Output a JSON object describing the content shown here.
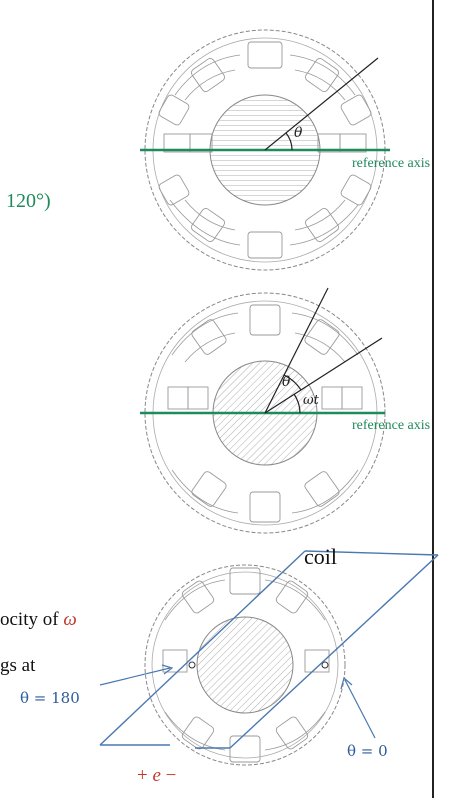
{
  "diagram1": {
    "theta_label": "θ",
    "reference_label": "reference axis"
  },
  "diagram2": {
    "theta_label": "θ",
    "omega_t_label": "ωt",
    "reference_label": "reference axis"
  },
  "diagram3": {
    "coil_label": "coil",
    "theta_180_label": "θ = 180",
    "theta_0_label": "θ = 0",
    "emf_plus": "+",
    "emf_symbol": "e",
    "emf_minus": "−"
  },
  "left_text": {
    "angle_fragment": "120°)",
    "line1_prefix": "ocity of ",
    "line1_symbol": "ω",
    "line2": "gs at"
  },
  "colors": {
    "reference_line": "#1f8a5a",
    "annotation": "#4a78b0",
    "emf": "#c0392b"
  }
}
